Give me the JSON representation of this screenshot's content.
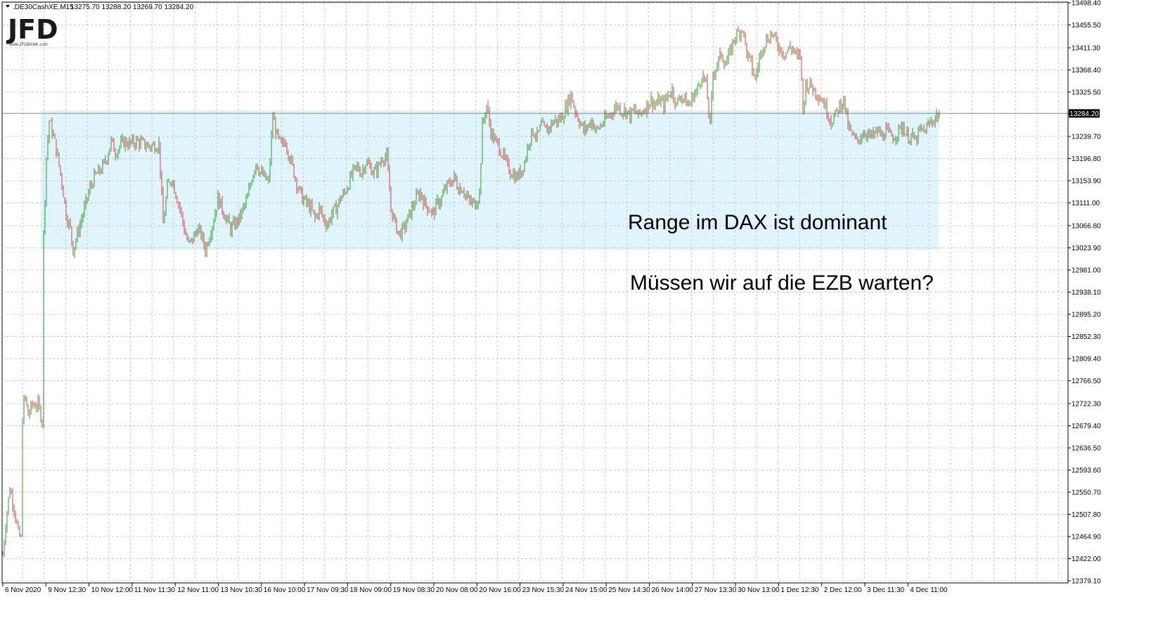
{
  "header": {
    "symbol": ".DE30CashXE,M15",
    "ohlc": "13275.70 13288.20 13269.70 13284.20",
    "dropdown_icon": "triangle-down-icon"
  },
  "logo": {
    "mark": "JFD",
    "sub": "www.JFDBANK.com"
  },
  "annotations": [
    "Range im DAX ist dominant",
    "Müssen wir auf die EZB warten?"
  ],
  "current_price": "13284.20",
  "colors": {
    "bull": "#2e9a2e",
    "bear": "#d94040",
    "range_zone": "#e0f4fb",
    "grid": "#c8c8c8"
  },
  "chart_data": {
    "type": "candlestick",
    "title": "",
    "xlabel": "",
    "ylabel": "",
    "ylim": [
      12379.1,
      13498.4
    ],
    "grid": true,
    "y_ticks": [
      "13498.40",
      "13455.50",
      "13411.30",
      "13368.40",
      "13325.50",
      "13284.20",
      "13239.70",
      "13196.80",
      "13153.90",
      "13111.00",
      "13066.80",
      "13023.90",
      "12981.00",
      "12938.10",
      "12895.20",
      "12852.30",
      "12809.40",
      "12766.50",
      "12722.30",
      "12679.40",
      "12636.50",
      "12593.60",
      "12550.70",
      "12507.80",
      "12464.90",
      "12422.00",
      "12379.10"
    ],
    "x_ticks": [
      "6 Nov 2020",
      "9 Nov 12:30",
      "10 Nov 12:00",
      "11 Nov 11:30",
      "12 Nov 11:00",
      "13 Nov 10:30",
      "16 Nov 10:00",
      "17 Nov 09:30",
      "18 Nov 09:00",
      "19 Nov 08:30",
      "20 Nov 08:00",
      "20 Nov 16:00",
      "23 Nov 15:30",
      "24 Nov 15:00",
      "25 Nov 14:30",
      "26 Nov 14:00",
      "27 Nov 13:30",
      "30 Nov 13:00",
      "1 Dec 12:30",
      "2 Dec 12:00",
      "3 Dec 11:30",
      "4 Dec 11:00"
    ],
    "range_zone": {
      "low": 13020,
      "high": 13290
    },
    "price_path": [
      [
        0,
        12430
      ],
      [
        4,
        12490
      ],
      [
        10,
        12560
      ],
      [
        16,
        12520
      ],
      [
        22,
        12470
      ],
      [
        26,
        12460
      ],
      [
        27,
        12680
      ],
      [
        31,
        12740
      ],
      [
        36,
        12700
      ],
      [
        42,
        12720
      ],
      [
        50,
        12720
      ],
      [
        56,
        12690
      ],
      [
        58,
        13050
      ],
      [
        62,
        13200
      ],
      [
        66,
        13270
      ],
      [
        72,
        13240
      ],
      [
        78,
        13200
      ],
      [
        84,
        13150
      ],
      [
        90,
        13090
      ],
      [
        96,
        13060
      ],
      [
        100,
        13020
      ],
      [
        106,
        13050
      ],
      [
        112,
        13080
      ],
      [
        118,
        13110
      ],
      [
        124,
        13140
      ],
      [
        130,
        13160
      ],
      [
        136,
        13170
      ],
      [
        142,
        13180
      ],
      [
        148,
        13200
      ],
      [
        154,
        13230
      ],
      [
        160,
        13210
      ],
      [
        166,
        13220
      ],
      [
        172,
        13230
      ],
      [
        180,
        13225
      ],
      [
        190,
        13230
      ],
      [
        200,
        13225
      ],
      [
        210,
        13220
      ],
      [
        222,
        13225
      ],
      [
        228,
        13070
      ],
      [
        234,
        13140
      ],
      [
        240,
        13160
      ],
      [
        246,
        13130
      ],
      [
        252,
        13100
      ],
      [
        258,
        13060
      ],
      [
        264,
        13030
      ],
      [
        270,
        13040
      ],
      [
        276,
        13060
      ],
      [
        282,
        13050
      ],
      [
        288,
        13020
      ],
      [
        294,
        13050
      ],
      [
        300,
        13080
      ],
      [
        306,
        13120
      ],
      [
        312,
        13100
      ],
      [
        318,
        13080
      ],
      [
        324,
        13060
      ],
      [
        330,
        13070
      ],
      [
        336,
        13080
      ],
      [
        342,
        13100
      ],
      [
        348,
        13120
      ],
      [
        354,
        13160
      ],
      [
        360,
        13190
      ],
      [
        366,
        13170
      ],
      [
        372,
        13160
      ],
      [
        378,
        13150
      ],
      [
        384,
        13280
      ],
      [
        390,
        13240
      ],
      [
        396,
        13220
      ],
      [
        402,
        13230
      ],
      [
        408,
        13200
      ],
      [
        414,
        13170
      ],
      [
        420,
        13140
      ],
      [
        426,
        13120
      ],
      [
        432,
        13110
      ],
      [
        438,
        13100
      ],
      [
        444,
        13080
      ],
      [
        450,
        13100
      ],
      [
        456,
        13080
      ],
      [
        462,
        13070
      ],
      [
        468,
        13090
      ],
      [
        474,
        13100
      ],
      [
        480,
        13120
      ],
      [
        486,
        13130
      ],
      [
        492,
        13150
      ],
      [
        498,
        13170
      ],
      [
        504,
        13180
      ],
      [
        510,
        13170
      ],
      [
        516,
        13190
      ],
      [
        522,
        13180
      ],
      [
        528,
        13170
      ],
      [
        534,
        13180
      ],
      [
        540,
        13200
      ],
      [
        546,
        13200
      ],
      [
        552,
        13100
      ],
      [
        558,
        13070
      ],
      [
        564,
        13050
      ],
      [
        570,
        13060
      ],
      [
        576,
        13080
      ],
      [
        582,
        13100
      ],
      [
        588,
        13120
      ],
      [
        594,
        13130
      ],
      [
        600,
        13110
      ],
      [
        606,
        13100
      ],
      [
        612,
        13090
      ],
      [
        618,
        13110
      ],
      [
        624,
        13120
      ],
      [
        630,
        13140
      ],
      [
        636,
        13150
      ],
      [
        642,
        13160
      ],
      [
        648,
        13140
      ],
      [
        654,
        13140
      ],
      [
        660,
        13120
      ],
      [
        666,
        13110
      ],
      [
        672,
        13110
      ],
      [
        678,
        13130
      ],
      [
        682,
        13260
      ],
      [
        688,
        13300
      ],
      [
        694,
        13250
      ],
      [
        700,
        13230
      ],
      [
        706,
        13220
      ],
      [
        712,
        13200
      ],
      [
        718,
        13180
      ],
      [
        724,
        13170
      ],
      [
        730,
        13160
      ],
      [
        736,
        13170
      ],
      [
        742,
        13190
      ],
      [
        748,
        13230
      ],
      [
        754,
        13250
      ],
      [
        760,
        13240
      ],
      [
        766,
        13260
      ],
      [
        772,
        13250
      ],
      [
        778,
        13260
      ],
      [
        784,
        13270
      ],
      [
        790,
        13270
      ],
      [
        796,
        13280
      ],
      [
        802,
        13300
      ],
      [
        808,
        13320
      ],
      [
        814,
        13290
      ],
      [
        820,
        13270
      ],
      [
        826,
        13250
      ],
      [
        832,
        13260
      ],
      [
        838,
        13270
      ],
      [
        844,
        13250
      ],
      [
        850,
        13260
      ],
      [
        856,
        13270
      ],
      [
        862,
        13280
      ],
      [
        868,
        13290
      ],
      [
        874,
        13300
      ],
      [
        880,
        13290
      ],
      [
        886,
        13290
      ],
      [
        892,
        13280
      ],
      [
        898,
        13290
      ],
      [
        904,
        13280
      ],
      [
        910,
        13290
      ],
      [
        916,
        13300
      ],
      [
        922,
        13310
      ],
      [
        928,
        13300
      ],
      [
        934,
        13310
      ],
      [
        940,
        13300
      ],
      [
        946,
        13320
      ],
      [
        952,
        13330
      ],
      [
        958,
        13300
      ],
      [
        964,
        13320
      ],
      [
        970,
        13310
      ],
      [
        976,
        13300
      ],
      [
        982,
        13320
      ],
      [
        988,
        13330
      ],
      [
        994,
        13360
      ],
      [
        1000,
        13340
      ],
      [
        1006,
        13260
      ],
      [
        1010,
        13360
      ],
      [
        1016,
        13380
      ],
      [
        1022,
        13400
      ],
      [
        1028,
        13380
      ],
      [
        1034,
        13400
      ],
      [
        1040,
        13430
      ],
      [
        1046,
        13440
      ],
      [
        1052,
        13450
      ],
      [
        1058,
        13400
      ],
      [
        1064,
        13380
      ],
      [
        1070,
        13350
      ],
      [
        1076,
        13390
      ],
      [
        1082,
        13420
      ],
      [
        1088,
        13430
      ],
      [
        1094,
        13440
      ],
      [
        1100,
        13420
      ],
      [
        1106,
        13410
      ],
      [
        1112,
        13400
      ],
      [
        1118,
        13410
      ],
      [
        1124,
        13410
      ],
      [
        1130,
        13390
      ],
      [
        1134,
        13400
      ],
      [
        1138,
        13290
      ],
      [
        1142,
        13340
      ],
      [
        1148,
        13340
      ],
      [
        1154,
        13330
      ],
      [
        1160,
        13320
      ],
      [
        1166,
        13310
      ],
      [
        1172,
        13290
      ],
      [
        1178,
        13270
      ],
      [
        1184,
        13280
      ],
      [
        1190,
        13300
      ],
      [
        1196,
        13310
      ],
      [
        1202,
        13260
      ],
      [
        1208,
        13240
      ],
      [
        1214,
        13230
      ],
      [
        1220,
        13240
      ],
      [
        1226,
        13250
      ],
      [
        1232,
        13240
      ],
      [
        1238,
        13240
      ],
      [
        1244,
        13250
      ],
      [
        1250,
        13240
      ],
      [
        1256,
        13250
      ],
      [
        1262,
        13240
      ],
      [
        1268,
        13240
      ],
      [
        1274,
        13250
      ],
      [
        1280,
        13260
      ],
      [
        1286,
        13240
      ],
      [
        1292,
        13240
      ],
      [
        1298,
        13230
      ],
      [
        1304,
        13250
      ],
      [
        1310,
        13250
      ],
      [
        1316,
        13260
      ],
      [
        1322,
        13270
      ],
      [
        1328,
        13280
      ],
      [
        1332,
        13284
      ]
    ]
  }
}
